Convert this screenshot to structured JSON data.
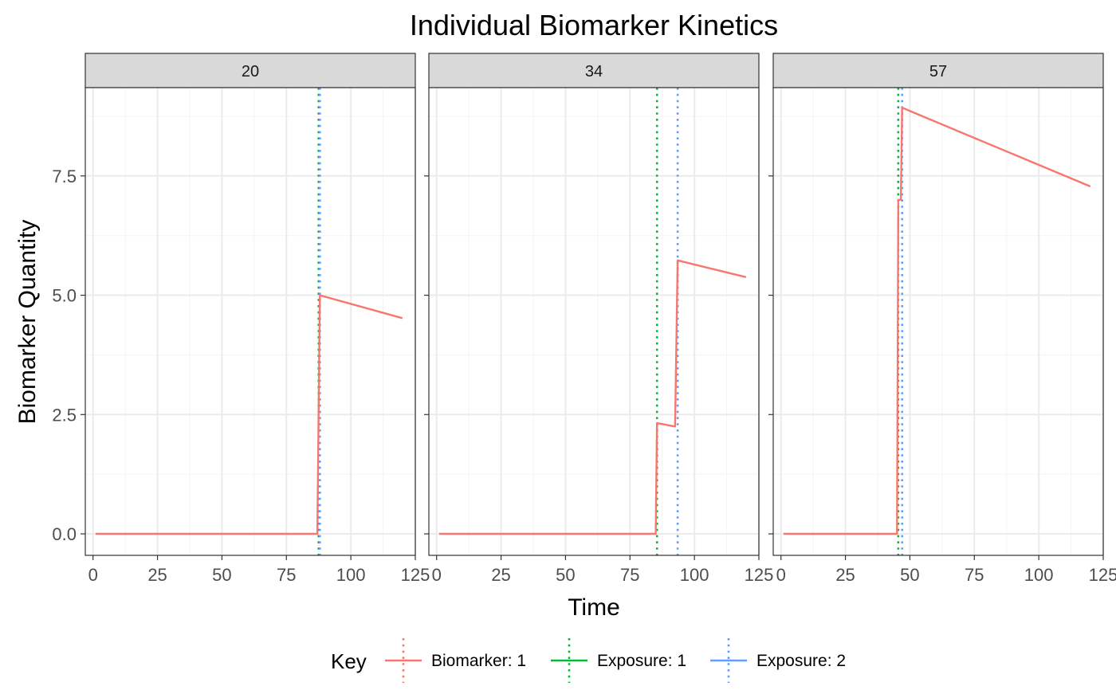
{
  "chart_data": {
    "type": "line",
    "title": "Individual Biomarker Kinetics",
    "xlabel": "Time",
    "ylabel": "Biomarker Quantity",
    "xlim": [
      -3,
      125
    ],
    "ylim": [
      -0.45,
      9.35
    ],
    "x_ticks": [
      0,
      25,
      50,
      75,
      100,
      125
    ],
    "x_tick_labels": [
      "0",
      "25",
      "50",
      "75",
      "100",
      "125"
    ],
    "y_ticks": [
      0,
      2.5,
      5,
      7.5
    ],
    "y_tick_labels": [
      "0.0",
      "2.5",
      "5.0",
      "7.5"
    ],
    "grid": true,
    "facets": [
      {
        "label": "20",
        "biomarker": {
          "x": [
            1,
            87,
            88,
            120
          ],
          "y": [
            0,
            0,
            5.0,
            4.52
          ]
        },
        "exposures": [
          {
            "name": "Exposure: 1",
            "x": 87.5
          },
          {
            "name": "Exposure: 2",
            "x": 88
          }
        ]
      },
      {
        "label": "34",
        "biomarker": {
          "x": [
            1,
            85,
            85.5,
            92.5,
            93.5,
            120
          ],
          "y": [
            0,
            0,
            2.32,
            2.25,
            5.73,
            5.38
          ]
        },
        "exposures": [
          {
            "name": "Exposure: 1",
            "x": 85.5
          },
          {
            "name": "Exposure: 2",
            "x": 93.5
          }
        ]
      },
      {
        "label": "57",
        "biomarker": {
          "x": [
            1,
            45,
            45.5,
            46.5,
            47,
            120
          ],
          "y": [
            0,
            0,
            7.0,
            7.0,
            8.93,
            7.28
          ]
        },
        "exposures": [
          {
            "name": "Exposure: 1",
            "x": 45.5
          },
          {
            "name": "Exposure: 2",
            "x": 47
          }
        ]
      }
    ],
    "legend": {
      "title": "Key",
      "position": "bottom",
      "entries": [
        {
          "name": "Biomarker: 1",
          "color": "#F8766D"
        },
        {
          "name": "Exposure: 1",
          "color": "#00BA38"
        },
        {
          "name": "Exposure: 2",
          "color": "#619CFF"
        }
      ]
    },
    "colors": {
      "biomarker": "#F8766D",
      "exposure_1": "#00BA38",
      "exposure_2": "#619CFF",
      "strip_fill": "#d9d9d9",
      "panel_border": "#333333",
      "grid_major": "#ebebeb",
      "grid_minor": "#f5f5f5"
    }
  }
}
